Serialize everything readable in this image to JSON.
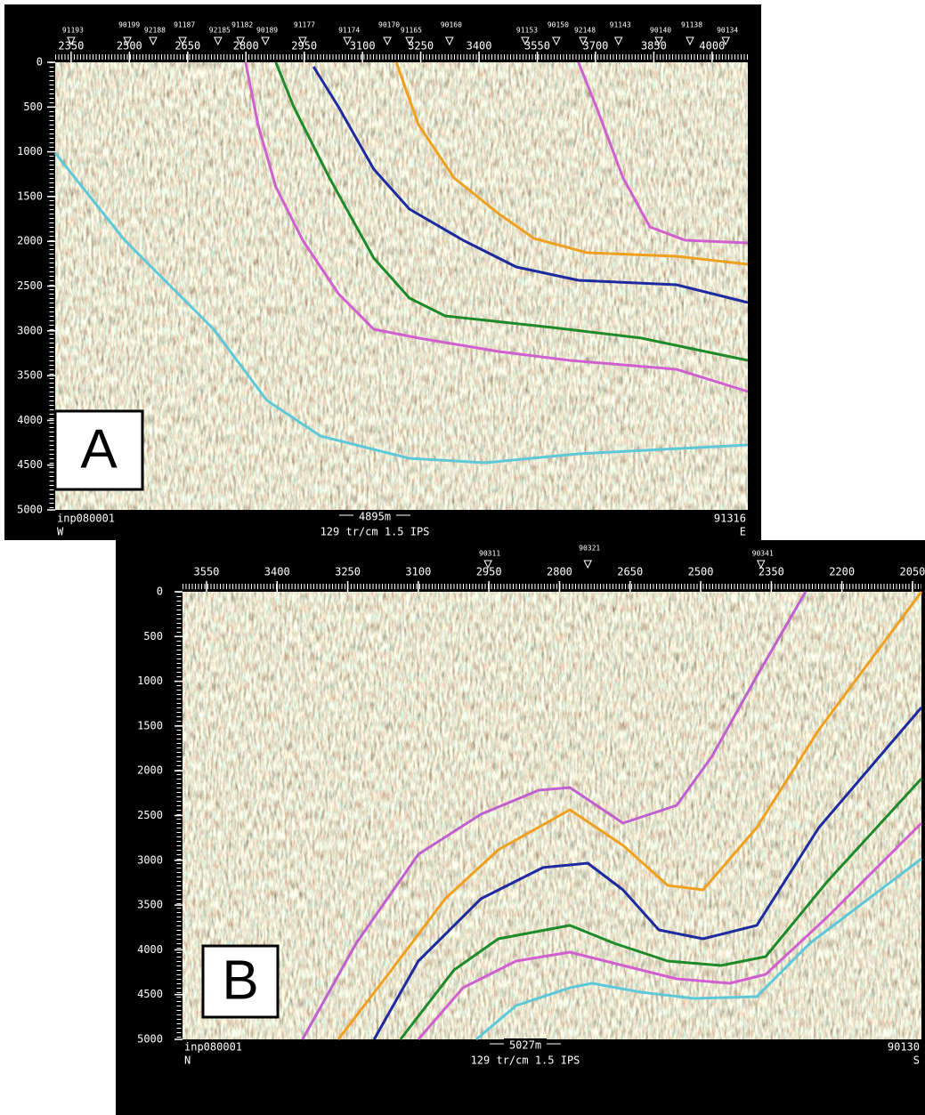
{
  "panels": [
    {
      "label": "A",
      "xlim": [
        2309,
        4092
      ],
      "ylim": [
        0,
        5000
      ],
      "xticks": [
        2350,
        2500,
        2650,
        2800,
        2950,
        3100,
        3250,
        3400,
        3550,
        3700,
        3850,
        4000
      ],
      "yticks": [
        0,
        500,
        1000,
        1500,
        2000,
        2500,
        3000,
        3500,
        4000,
        4500,
        5000
      ],
      "wells": [
        {
          "name": "91193",
          "trace": 2350
        },
        {
          "name": "90199",
          "trace": 2495
        },
        {
          "name": "92188",
          "trace": 2561
        },
        {
          "name": "91187",
          "trace": 2637
        },
        {
          "name": "92185",
          "trace": 2728
        },
        {
          "name": "91182",
          "trace": 2786
        },
        {
          "name": "90189",
          "trace": 2850
        },
        {
          "name": "91177",
          "trace": 2946
        },
        {
          "name": "91174",
          "trace": 3061
        },
        {
          "name": "90170",
          "trace": 3164
        },
        {
          "name": "91165",
          "trace": 3221
        },
        {
          "name": "90160",
          "trace": 3324
        },
        {
          "name": "91153",
          "trace": 3519
        },
        {
          "name": "90150",
          "trace": 3599
        },
        {
          "name": "92148",
          "trace": 3668
        },
        {
          "name": "91143",
          "trace": 3759
        },
        {
          "name": "90140",
          "trace": 3863
        },
        {
          "name": "91138",
          "trace": 3943
        },
        {
          "name": "90134",
          "trace": 4035
        }
      ],
      "horizons": [
        {
          "color": "#5fc8d8",
          "trace": [
            2309,
            2488,
            2717,
            2854,
            2992,
            3221,
            3416,
            3656,
            4092
          ],
          "time": [
            1014,
            1988,
            2982,
            3777,
            4175,
            4424,
            4473,
            4374,
            4274
          ]
        },
        {
          "color": "#d060d0",
          "trace": [
            2799,
            2831,
            2877,
            2946,
            3038,
            3129,
            3244,
            3450,
            3633,
            3908,
            4092
          ],
          "time": [
            0,
            696,
            1392,
            1988,
            2584,
            2982,
            3081,
            3231,
            3330,
            3429,
            3678
          ]
        },
        {
          "color": "#1e8a2a",
          "trace": [
            2877,
            2923,
            3015,
            3129,
            3221,
            3313,
            3588,
            3817,
            4092
          ],
          "time": [
            0,
            497,
            1292,
            2187,
            2634,
            2833,
            2962,
            3081,
            3330
          ]
        },
        {
          "color": "#1e2aa0",
          "trace": [
            2974,
            3038,
            3129,
            3221,
            3359,
            3496,
            3656,
            3908,
            4092
          ],
          "time": [
            50,
            497,
            1193,
            1640,
            1988,
            2286,
            2435,
            2485,
            2684
          ]
        },
        {
          "color": "#f0a020",
          "trace": [
            3187,
            3244,
            3336,
            3450,
            3542,
            3679,
            3908,
            4092
          ],
          "time": [
            0,
            696,
            1292,
            1690,
            1968,
            2127,
            2167,
            2256
          ]
        },
        {
          "color": "#d060d0",
          "trace": [
            3656,
            3702,
            3771,
            3840,
            3931,
            4092
          ],
          "time": [
            0,
            497,
            1292,
            1839,
            1988,
            2018
          ]
        }
      ],
      "footer": {
        "left_top": "inp080001",
        "left_bottom": "W",
        "scale": "4895m",
        "center": "129 tr/cm 1.5 IPS",
        "right_top": "91316",
        "right_bottom": "E"
      }
    },
    {
      "label": "B",
      "xlim": [
        3601,
        2031
      ],
      "ylim": [
        0,
        5000
      ],
      "xticks": [
        3550,
        3400,
        3250,
        3100,
        2950,
        2800,
        2650,
        2500,
        2350,
        2200,
        2050
      ],
      "yticks": [
        0,
        500,
        1000,
        1500,
        2000,
        2500,
        3000,
        3500,
        4000,
        4500,
        5000
      ],
      "wells": [
        {
          "name": "90311",
          "trace": 2952
        },
        {
          "name": "90321",
          "trace": 2740
        },
        {
          "name": "90341",
          "trace": 2372
        }
      ],
      "horizons": [
        {
          "color": "#c060d0",
          "trace": [
            3346,
            3232,
            3100,
            2967,
            2844,
            2778,
            2665,
            2551,
            2476,
            2381,
            2277
          ],
          "time": [
            5000,
            3926,
            2932,
            2485,
            2217,
            2187,
            2584,
            2386,
            1839,
            944,
            0
          ]
        },
        {
          "color": "#f0a020",
          "trace": [
            3270,
            3157,
            3043,
            2930,
            2778,
            2665,
            2570,
            2495,
            2381,
            2249,
            2031
          ],
          "time": [
            5000,
            4225,
            3429,
            2883,
            2435,
            2833,
            3280,
            3330,
            2634,
            1541,
            0
          ]
        },
        {
          "color": "#1e2aa0",
          "trace": [
            3194,
            3100,
            2967,
            2835,
            2740,
            2665,
            2589,
            2495,
            2381,
            2249,
            2031
          ],
          "time": [
            5000,
            4125,
            3429,
            3081,
            3032,
            3330,
            3777,
            3877,
            3727,
            2634,
            1292
          ]
        },
        {
          "color": "#1e8a2a",
          "trace": [
            3138,
            3024,
            2930,
            2778,
            2684,
            2570,
            2457,
            2362,
            2230,
            2031
          ],
          "time": [
            5000,
            4225,
            3877,
            3727,
            3926,
            4125,
            4175,
            4076,
            3231,
            2087
          ]
        },
        {
          "color": "#d060d0",
          "trace": [
            3100,
            3005,
            2892,
            2778,
            2665,
            2551,
            2438,
            2362,
            2230,
            2031
          ],
          "time": [
            5000,
            4423,
            4125,
            4026,
            4175,
            4324,
            4374,
            4274,
            3628,
            2584
          ]
        },
        {
          "color": "#5fc8d8",
          "trace": [
            2977,
            2892,
            2778,
            2731,
            2627,
            2514,
            2381,
            2268,
            2031
          ],
          "time": [
            5000,
            4622,
            4423,
            4374,
            4473,
            4543,
            4523,
            3926,
            2982
          ]
        }
      ],
      "footer": {
        "left_top": "inp080001",
        "left_bottom": "N",
        "scale": "5027m",
        "center": "129 tr/cm 1.5 IPS",
        "right_top": "90130",
        "right_bottom": "S"
      }
    }
  ]
}
